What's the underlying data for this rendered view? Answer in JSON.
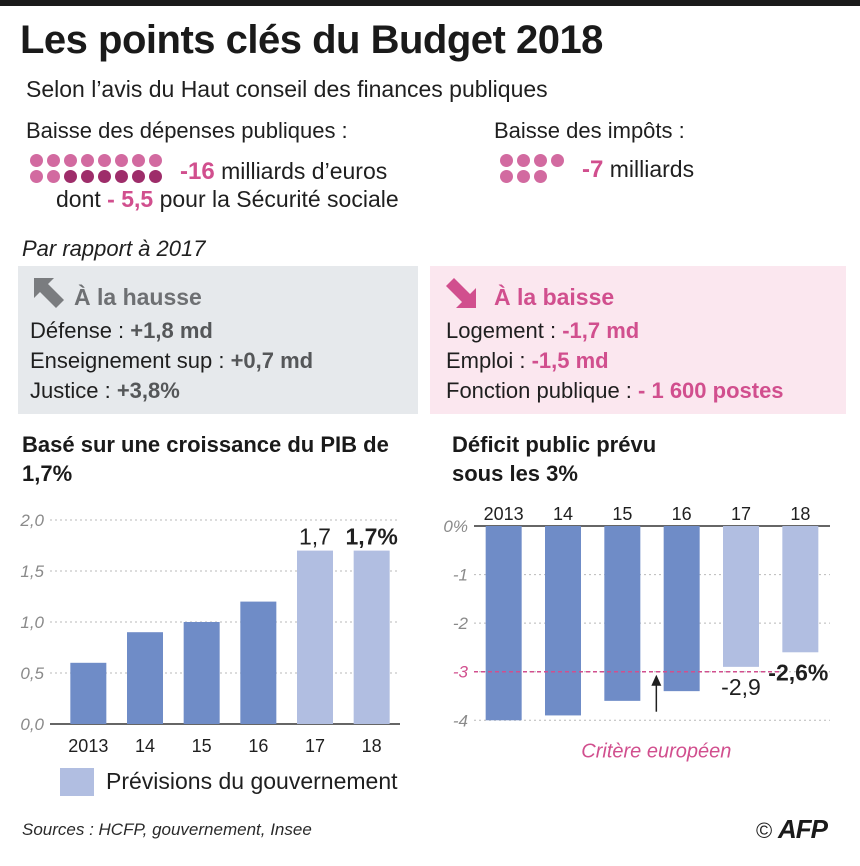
{
  "header": {
    "title": "Les points clés du Budget 2018",
    "subtitle": "Selon l’avis du Haut conseil des finances publiques"
  },
  "spending": {
    "heading": "Baisse des dépenses publiques :",
    "amount": "-16",
    "amount_unit": "milliards d’euros",
    "detail_prefix": "dont",
    "detail_amount": "- 5,5",
    "detail_suffix": "pour la Sécurité sociale"
  },
  "taxes": {
    "heading": "Baisse des impôts :",
    "amount": "-7",
    "amount_unit": "milliards"
  },
  "comparison_label": "Par rapport à 2017",
  "increases": {
    "heading": "À la hausse",
    "items": [
      {
        "label": "Défense : ",
        "value": "+1,8 md"
      },
      {
        "label": "Enseignement sup : ",
        "value": "+0,7 md"
      },
      {
        "label": "Justice : ",
        "value": "+3,8%"
      }
    ]
  },
  "decreases": {
    "heading": "À la baisse",
    "items": [
      {
        "label": "Logement : ",
        "value": "-1,7 md"
      },
      {
        "label": "Emploi : ",
        "value": "-1,5 md"
      },
      {
        "label": "Fonction publique : ",
        "value": "- 1 600 postes"
      }
    ]
  },
  "colors": {
    "actual_bar": "#6f8cc7",
    "forecast_bar": "#b1bee1",
    "accent_pink": "#d14f8e",
    "increase_box": "#e6e9ec",
    "decrease_box": "#fbe7ef"
  },
  "chart_data": [
    {
      "type": "bar",
      "title": "Basé sur une croissance du PIB de 1,7%",
      "categories": [
        "2013",
        "14",
        "15",
        "16",
        "17",
        "18"
      ],
      "values": [
        0.6,
        0.9,
        1.0,
        1.2,
        1.7,
        1.7
      ],
      "forecast": [
        false,
        false,
        false,
        false,
        true,
        true
      ],
      "data_labels": [
        "",
        "",
        "",
        "",
        "1,7",
        "1,7%"
      ],
      "ylim": [
        0,
        2.0
      ],
      "yticks": [
        0,
        0.5,
        1.0,
        1.5,
        2.0
      ],
      "ytick_labels": [
        "0,0",
        "0,5",
        "1,0",
        "1,5",
        "2,0"
      ],
      "grid": true,
      "legend": "Prévisions du gouvernement"
    },
    {
      "type": "bar",
      "title": "Déficit public prévu sous les 3%",
      "categories": [
        "2013",
        "14",
        "15",
        "16",
        "17",
        "18"
      ],
      "values": [
        -4.0,
        -3.9,
        -3.6,
        -3.4,
        -2.9,
        -2.6
      ],
      "forecast": [
        false,
        false,
        false,
        false,
        true,
        true
      ],
      "data_labels": [
        "",
        "",
        "",
        "",
        "-2,9",
        "-2,6%"
      ],
      "ylim": [
        -4.2,
        0
      ],
      "yticks": [
        0,
        -1,
        -2,
        -3,
        -4
      ],
      "ytick_labels": [
        "0%",
        "-1",
        "-2",
        "-3",
        "-4"
      ],
      "grid": true,
      "reference_line": {
        "value": -3,
        "label": "Critère européen"
      }
    }
  ],
  "footer": {
    "sources": "Sources : HCFP, gouvernement, Insee",
    "copyright": "©",
    "brand": "AFP"
  }
}
